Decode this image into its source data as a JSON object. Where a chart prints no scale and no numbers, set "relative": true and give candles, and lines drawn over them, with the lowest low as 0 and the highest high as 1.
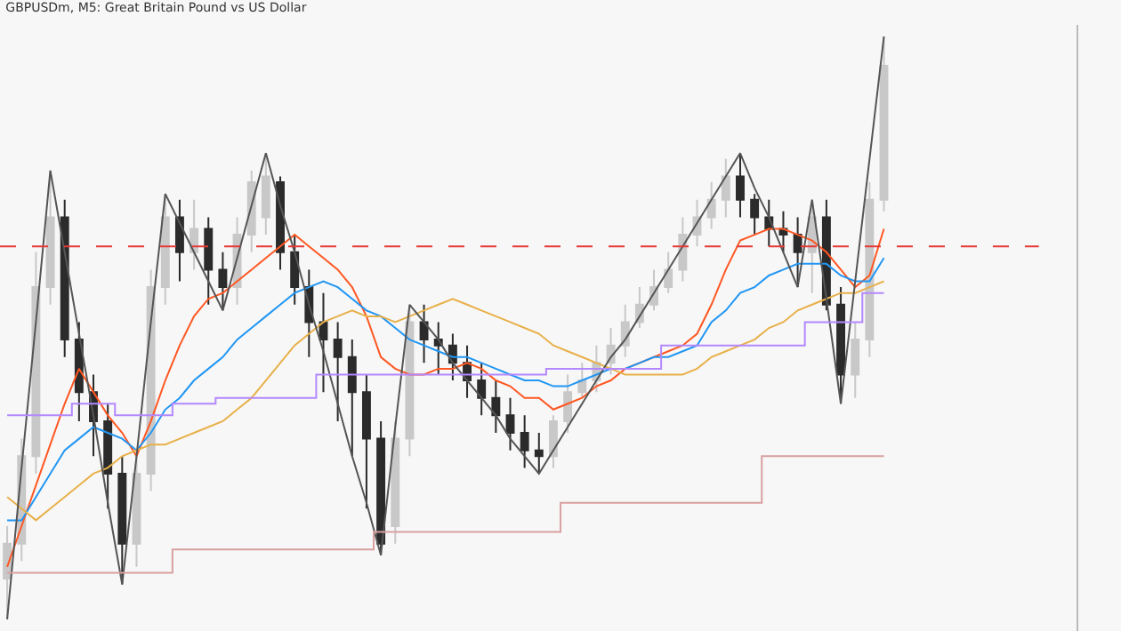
{
  "chart_data": {
    "type": "candlestick",
    "title": "GBPUSDm, M5: Great Britain Pound vs US Dollar",
    "relative": true,
    "grid": false,
    "tick_labels": false,
    "categories": [
      null,
      null,
      null,
      null,
      null,
      null,
      null,
      null,
      null,
      null,
      null,
      null,
      null,
      null,
      null,
      null,
      null,
      null,
      null,
      null,
      null,
      null,
      null,
      null,
      null,
      null,
      null,
      null,
      null,
      null,
      null,
      null,
      null,
      null,
      null,
      null,
      null,
      null,
      null,
      null,
      null,
      null,
      null,
      null,
      null,
      null,
      null,
      null,
      null,
      null,
      null,
      null,
      null,
      null,
      null,
      null,
      null,
      null,
      null,
      null,
      null,
      null
    ],
    "ohlc": [
      [
        0.07,
        0.16,
        0.0,
        0.13
      ],
      [
        0.13,
        0.31,
        0.1,
        0.28
      ],
      [
        0.28,
        0.63,
        0.25,
        0.57
      ],
      [
        0.57,
        0.77,
        0.54,
        0.69
      ],
      [
        0.69,
        0.72,
        0.45,
        0.48
      ],
      [
        0.48,
        0.51,
        0.34,
        0.39
      ],
      [
        0.39,
        0.42,
        0.28,
        0.34
      ],
      [
        0.34,
        0.37,
        0.19,
        0.25
      ],
      [
        0.25,
        0.28,
        0.06,
        0.13
      ],
      [
        0.13,
        0.28,
        0.09,
        0.25
      ],
      [
        0.25,
        0.6,
        0.22,
        0.57
      ],
      [
        0.57,
        0.73,
        0.54,
        0.69
      ],
      [
        0.69,
        0.72,
        0.58,
        0.63
      ],
      [
        0.63,
        0.72,
        0.6,
        0.67
      ],
      [
        0.67,
        0.69,
        0.54,
        0.6
      ],
      [
        0.6,
        0.63,
        0.53,
        0.57
      ],
      [
        0.57,
        0.69,
        0.54,
        0.66
      ],
      [
        0.66,
        0.77,
        0.63,
        0.75
      ],
      [
        0.69,
        0.8,
        0.66,
        0.76
      ],
      [
        0.75,
        0.76,
        0.6,
        0.63
      ],
      [
        0.63,
        0.66,
        0.54,
        0.57
      ],
      [
        0.57,
        0.6,
        0.45,
        0.51
      ],
      [
        0.51,
        0.56,
        0.39,
        0.48
      ],
      [
        0.48,
        0.51,
        0.34,
        0.45
      ],
      [
        0.45,
        0.48,
        0.28,
        0.39
      ],
      [
        0.39,
        0.42,
        0.19,
        0.31
      ],
      [
        0.31,
        0.34,
        0.11,
        0.13
      ],
      [
        0.16,
        0.34,
        0.13,
        0.31
      ],
      [
        0.31,
        0.54,
        0.28,
        0.51
      ],
      [
        0.51,
        0.54,
        0.44,
        0.48
      ],
      [
        0.48,
        0.51,
        0.42,
        0.47
      ],
      [
        0.47,
        0.49,
        0.41,
        0.44
      ],
      [
        0.44,
        0.47,
        0.38,
        0.41
      ],
      [
        0.41,
        0.44,
        0.35,
        0.38
      ],
      [
        0.38,
        0.41,
        0.32,
        0.35
      ],
      [
        0.35,
        0.38,
        0.29,
        0.32
      ],
      [
        0.32,
        0.35,
        0.26,
        0.29
      ],
      [
        0.29,
        0.32,
        0.25,
        0.28
      ],
      [
        0.28,
        0.35,
        0.26,
        0.34
      ],
      [
        0.34,
        0.42,
        0.32,
        0.39
      ],
      [
        0.39,
        0.44,
        0.38,
        0.41
      ],
      [
        0.41,
        0.47,
        0.39,
        0.44
      ],
      [
        0.44,
        0.5,
        0.42,
        0.47
      ],
      [
        0.47,
        0.54,
        0.45,
        0.51
      ],
      [
        0.51,
        0.57,
        0.5,
        0.54
      ],
      [
        0.54,
        0.6,
        0.53,
        0.57
      ],
      [
        0.57,
        0.63,
        0.56,
        0.6
      ],
      [
        0.6,
        0.69,
        0.58,
        0.66
      ],
      [
        0.66,
        0.72,
        0.64,
        0.69
      ],
      [
        0.69,
        0.75,
        0.67,
        0.72
      ],
      [
        0.72,
        0.79,
        0.69,
        0.76
      ],
      [
        0.76,
        0.8,
        0.69,
        0.72
      ],
      [
        0.72,
        0.73,
        0.66,
        0.69
      ],
      [
        0.69,
        0.72,
        0.64,
        0.67
      ],
      [
        0.67,
        0.7,
        0.63,
        0.66
      ],
      [
        0.66,
        0.69,
        0.57,
        0.63
      ],
      [
        0.63,
        0.72,
        0.56,
        0.69
      ],
      [
        0.69,
        0.72,
        0.53,
        0.54
      ],
      [
        0.54,
        0.57,
        0.37,
        0.42
      ],
      [
        0.42,
        0.51,
        0.38,
        0.48
      ],
      [
        0.48,
        0.75,
        0.45,
        0.72
      ],
      [
        0.72,
        1.0,
        0.7,
        0.95
      ]
    ],
    "colors": [
      "#c8c8c8",
      "#c8c8c8",
      "#c8c8c8",
      "#c8c8c8",
      "#2b2b2b",
      "#2b2b2b",
      "#2b2b2b",
      "#2b2b2b",
      "#2b2b2b",
      "#c8c8c8",
      "#c8c8c8",
      "#c8c8c8",
      "#2b2b2b",
      "#c8c8c8",
      "#2b2b2b",
      "#2b2b2b",
      "#c8c8c8",
      "#c8c8c8",
      "#c8c8c8",
      "#2b2b2b",
      "#2b2b2b",
      "#2b2b2b",
      "#2b2b2b",
      "#2b2b2b",
      "#2b2b2b",
      "#2b2b2b",
      "#2b2b2b",
      "#c8c8c8",
      "#c8c8c8",
      "#2b2b2b",
      "#2b2b2b",
      "#2b2b2b",
      "#2b2b2b",
      "#2b2b2b",
      "#2b2b2b",
      "#2b2b2b",
      "#2b2b2b",
      "#2b2b2b",
      "#c8c8c8",
      "#c8c8c8",
      "#c8c8c8",
      "#c8c8c8",
      "#c8c8c8",
      "#c8c8c8",
      "#c8c8c8",
      "#c8c8c8",
      "#c8c8c8",
      "#c8c8c8",
      "#c8c8c8",
      "#c8c8c8",
      "#c8c8c8",
      "#2b2b2b",
      "#2b2b2b",
      "#2b2b2b",
      "#2b2b2b",
      "#2b2b2b",
      "#c8c8c8",
      "#2b2b2b",
      "#2b2b2b",
      "#c8c8c8",
      "#c8c8c8",
      "#c8c8c8"
    ],
    "series": [
      {
        "type": "line",
        "color": "#ff5722",
        "values": [
          0.09,
          0.16,
          0.23,
          0.3,
          0.37,
          0.43,
          0.39,
          0.35,
          0.32,
          0.28,
          0.34,
          0.41,
          0.47,
          0.52,
          0.55,
          0.56,
          0.58,
          0.6,
          0.62,
          0.64,
          0.66,
          0.64,
          0.62,
          0.6,
          0.57,
          0.52,
          0.45,
          0.43,
          0.42,
          0.42,
          0.43,
          0.43,
          0.44,
          0.43,
          0.41,
          0.4,
          0.38,
          0.38,
          0.36,
          0.37,
          0.38,
          0.4,
          0.41,
          0.43,
          0.44,
          0.45,
          0.46,
          0.47,
          0.49,
          0.54,
          0.6,
          0.65,
          0.66,
          0.67,
          0.67,
          0.66,
          0.65,
          0.63,
          0.6,
          0.57,
          0.59,
          0.67
        ]
      },
      {
        "type": "line",
        "color": "#2196f3",
        "values": [
          0.17,
          0.17,
          0.21,
          0.25,
          0.29,
          0.31,
          0.33,
          0.32,
          0.31,
          0.29,
          0.32,
          0.36,
          0.38,
          0.41,
          0.43,
          0.45,
          0.48,
          0.5,
          0.52,
          0.54,
          0.56,
          0.57,
          0.58,
          0.57,
          0.55,
          0.53,
          0.52,
          0.5,
          0.48,
          0.47,
          0.46,
          0.45,
          0.45,
          0.44,
          0.43,
          0.42,
          0.41,
          0.41,
          0.4,
          0.4,
          0.41,
          0.42,
          0.43,
          0.43,
          0.44,
          0.45,
          0.45,
          0.46,
          0.47,
          0.51,
          0.53,
          0.56,
          0.57,
          0.59,
          0.6,
          0.61,
          0.61,
          0.61,
          0.59,
          0.58,
          0.58,
          0.62
        ]
      },
      {
        "type": "line",
        "color": "#e8b04a",
        "values": [
          0.21,
          0.19,
          0.17,
          0.19,
          0.21,
          0.23,
          0.25,
          0.26,
          0.28,
          0.29,
          0.3,
          0.3,
          0.31,
          0.32,
          0.33,
          0.34,
          0.36,
          0.38,
          0.41,
          0.44,
          0.47,
          0.49,
          0.51,
          0.52,
          0.53,
          0.52,
          0.52,
          0.51,
          0.52,
          0.53,
          0.54,
          0.55,
          0.54,
          0.53,
          0.52,
          0.51,
          0.5,
          0.49,
          0.47,
          0.46,
          0.45,
          0.44,
          0.43,
          0.42,
          0.42,
          0.42,
          0.42,
          0.42,
          0.43,
          0.45,
          0.46,
          0.47,
          0.48,
          0.5,
          0.51,
          0.53,
          0.54,
          0.55,
          0.56,
          0.56,
          0.57,
          0.58
        ]
      },
      {
        "type": "line",
        "color": "#555555",
        "values": [
          0.0,
          0.26,
          0.51,
          0.77,
          0.63,
          0.49,
          0.35,
          0.2,
          0.06,
          0.28,
          0.51,
          0.73,
          0.68,
          0.63,
          0.58,
          0.53,
          0.62,
          0.71,
          0.8,
          0.71,
          0.63,
          0.54,
          0.46,
          0.37,
          0.28,
          0.2,
          0.11,
          0.33,
          0.54,
          0.51,
          0.48,
          0.44,
          0.41,
          0.38,
          0.35,
          0.31,
          0.28,
          0.25,
          0.29,
          0.33,
          0.37,
          0.41,
          0.45,
          0.48,
          0.52,
          0.56,
          0.6,
          0.64,
          0.68,
          0.72,
          0.76,
          0.8,
          0.74,
          0.69,
          0.63,
          0.57,
          0.72,
          0.55,
          0.37,
          0.58,
          0.79,
          1.0
        ]
      },
      {
        "type": "step",
        "color": "#b388ff",
        "values": [
          0.35,
          0.35,
          0.35,
          0.35,
          0.35,
          0.37,
          0.37,
          0.37,
          0.35,
          0.35,
          0.35,
          0.35,
          0.37,
          0.37,
          0.37,
          0.38,
          0.38,
          0.38,
          0.38,
          0.38,
          0.38,
          0.38,
          0.42,
          0.42,
          0.42,
          0.42,
          0.42,
          0.42,
          0.42,
          0.42,
          0.42,
          0.42,
          0.42,
          0.42,
          0.42,
          0.42,
          0.42,
          0.42,
          0.43,
          0.43,
          0.43,
          0.43,
          0.43,
          0.43,
          0.43,
          0.43,
          0.47,
          0.47,
          0.47,
          0.47,
          0.47,
          0.47,
          0.47,
          0.47,
          0.47,
          0.47,
          0.51,
          0.51,
          0.51,
          0.51,
          0.56,
          0.56
        ]
      },
      {
        "type": "step",
        "color": "#d9a0a0",
        "values": [
          0.08,
          0.08,
          0.08,
          0.08,
          0.08,
          0.08,
          0.08,
          0.08,
          0.08,
          0.08,
          0.08,
          0.08,
          0.12,
          0.12,
          0.12,
          0.12,
          0.12,
          0.12,
          0.12,
          0.12,
          0.12,
          0.12,
          0.12,
          0.12,
          0.12,
          0.12,
          0.15,
          0.15,
          0.15,
          0.15,
          0.15,
          0.15,
          0.15,
          0.15,
          0.15,
          0.15,
          0.15,
          0.15,
          0.15,
          0.2,
          0.2,
          0.2,
          0.2,
          0.2,
          0.2,
          0.2,
          0.2,
          0.2,
          0.2,
          0.2,
          0.2,
          0.2,
          0.2,
          0.28,
          0.28,
          0.28,
          0.28,
          0.28,
          0.28,
          0.28,
          0.28,
          0.28
        ]
      }
    ],
    "ref_lines": [
      {
        "axis": "y",
        "value": 0.64,
        "color": "#e53935",
        "line_style": "dashed"
      }
    ]
  }
}
